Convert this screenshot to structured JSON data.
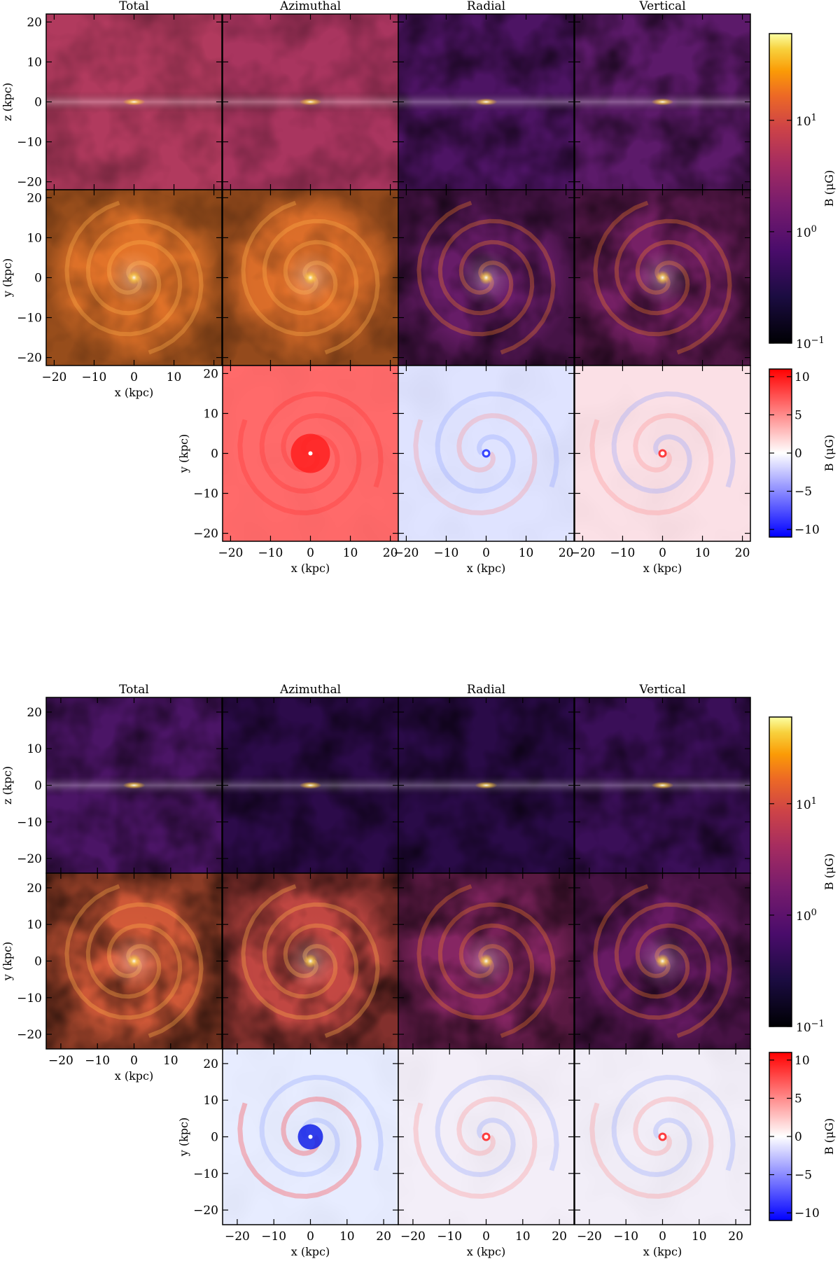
{
  "figure": {
    "panel_titles": [
      "Total",
      "Azimuthal",
      "Radial",
      "Vertical"
    ],
    "log_colorbar": {
      "label": "B (μG)",
      "tick_labels": [
        "10^1",
        "10^0",
        "10^−1"
      ],
      "tick_values": [
        10,
        1,
        0.1
      ],
      "range": [
        0.1,
        60
      ],
      "colormap": "inferno"
    },
    "signed_colorbar": {
      "label": "B (μG)",
      "tick_labels": [
        "10",
        "5",
        "0",
        "−5",
        "−10"
      ],
      "tick_values": [
        10,
        5,
        0,
        -5,
        -10
      ],
      "range": [
        -11,
        11
      ],
      "colormap": "bwr",
      "colors": {
        "negative": "#0000ff",
        "zero": "#ffffff",
        "positive": "#ff0000"
      }
    }
  },
  "chart_data": [
    {
      "type": "heatmap",
      "figure": "upper",
      "title_row": [
        "Total",
        "Azimuthal",
        "Radial",
        "Vertical"
      ],
      "rows": [
        {
          "projection": "edge-on (x-z)",
          "ylabel": "z (kpc)",
          "yticks": [
            "20",
            "10",
            "0",
            "−10",
            "−20"
          ],
          "scale": "log",
          "panels": [
            "Total",
            "Azimuthal",
            "Radial",
            "Vertical"
          ]
        },
        {
          "projection": "face-on (x-y)",
          "ylabel": "y (kpc)",
          "yticks": [
            "20",
            "10",
            "0",
            "−10",
            "−20"
          ],
          "scale": "log",
          "panels": [
            "Total",
            "Azimuthal",
            "Radial",
            "Vertical"
          ],
          "xlabel": "x (kpc)",
          "xticks_first_panel": [
            "−20",
            "−10",
            "0",
            "10"
          ]
        },
        {
          "projection": "face-on signed (x-y)",
          "ylabel": "y (kpc)",
          "yticks": [
            "20",
            "10",
            "0",
            "−10",
            "−20"
          ],
          "scale": "linear",
          "panels": [
            "Azimuthal",
            "Radial",
            "Vertical"
          ],
          "xlabel": "x (kpc)",
          "xticks": [
            "−20",
            "−10",
            "0",
            "10",
            "20"
          ]
        }
      ],
      "axis_range_kpc": [
        -22,
        22
      ],
      "signed_dominant_sign": {
        "Azimuthal": "positive",
        "Radial": "mixed",
        "Vertical": "mixed"
      }
    },
    {
      "type": "heatmap",
      "figure": "lower",
      "title_row": [
        "Total",
        "Azimuthal",
        "Radial",
        "Vertical"
      ],
      "rows": [
        {
          "projection": "edge-on (x-z)",
          "ylabel": "z (kpc)",
          "yticks": [
            "20",
            "10",
            "0",
            "−10",
            "−20"
          ],
          "scale": "log",
          "panels": [
            "Total",
            "Azimuthal",
            "Radial",
            "Vertical"
          ]
        },
        {
          "projection": "face-on (x-y)",
          "ylabel": "y (kpc)",
          "yticks": [
            "20",
            "10",
            "0",
            "−10",
            "−20"
          ],
          "scale": "log",
          "panels": [
            "Total",
            "Azimuthal",
            "Radial",
            "Vertical"
          ],
          "xlabel": "x (kpc)",
          "xticks_first_panel": [
            "−20",
            "−10",
            "0",
            "10"
          ]
        },
        {
          "projection": "face-on signed (x-y)",
          "ylabel": "y (kpc)",
          "yticks": [
            "20",
            "10",
            "0",
            "−10",
            "−20"
          ],
          "scale": "linear",
          "panels": [
            "Azimuthal",
            "Radial",
            "Vertical"
          ],
          "xlabel": "x (kpc)",
          "xticks": [
            "−20",
            "−10",
            "0",
            "10",
            "20"
          ]
        }
      ],
      "axis_range_kpc": [
        -24,
        24
      ],
      "signed_dominant_sign": {
        "Azimuthal": "mixed (negative core)",
        "Radial": "mixed",
        "Vertical": "mixed"
      }
    }
  ]
}
